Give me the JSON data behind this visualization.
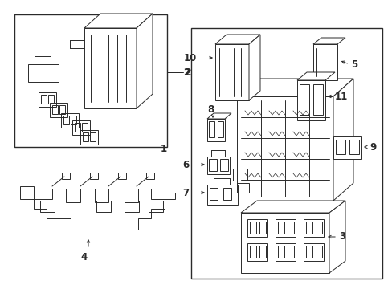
{
  "bg_color": "#ffffff",
  "lc": "#2a2a2a",
  "lw": 0.7,
  "figsize": [
    4.89,
    3.6
  ],
  "dpi": 100
}
